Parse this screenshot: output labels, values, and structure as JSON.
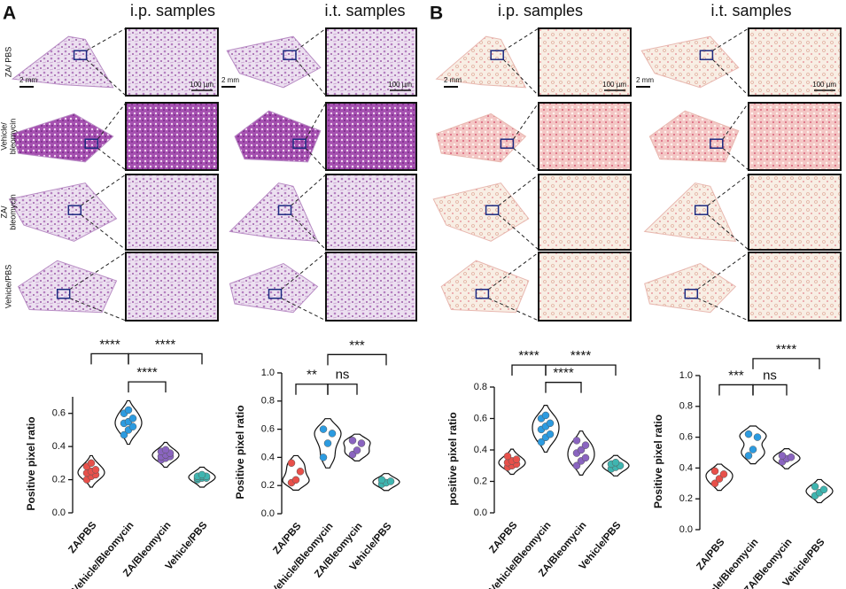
{
  "panels": [
    {
      "label": "A",
      "columns": [
        "i.p. samples",
        "i.t. samples"
      ],
      "rows": [
        [
          "ZA/ PBS"
        ],
        [
          "Vehicle/",
          "bleomycin"
        ],
        [
          "ZA/",
          "bleomycin"
        ],
        [
          "Vehicle/PBS"
        ]
      ],
      "scale_bars": [
        "2 mm",
        "100 µm"
      ]
    },
    {
      "label": "B",
      "columns": [
        "i.p. samples",
        "i.t. samples"
      ],
      "scale_bars": [
        "2 mm",
        "100 µm"
      ]
    }
  ],
  "chart_data": [
    {
      "type": "violin",
      "y_label": "Positive pixel ratio",
      "categories": [
        "ZA/PBS",
        "Vehicle/Bleomycin",
        "ZA/Bleomycin",
        "Vehicle/PBS"
      ],
      "colors": [
        "#e8504a",
        "#2c9be0",
        "#8a64c0",
        "#3fb5b0"
      ],
      "values": [
        [
          0.2,
          0.22,
          0.23,
          0.24,
          0.25,
          0.26,
          0.28,
          0.3
        ],
        [
          0.47,
          0.5,
          0.52,
          0.54,
          0.55,
          0.57,
          0.6,
          0.62
        ],
        [
          0.32,
          0.33,
          0.34,
          0.34,
          0.35,
          0.36,
          0.37,
          0.38
        ],
        [
          0.2,
          0.21,
          0.21,
          0.21,
          0.22,
          0.22,
          0.22,
          0.23
        ]
      ],
      "ylim": [
        0,
        0.7
      ],
      "yticks": [
        {
          "value": 0,
          "label": "0.0"
        },
        0.2,
        0.4,
        0.6
      ],
      "significance": [
        {
          "groups": [
            "ZA/PBS",
            "Vehicle/Bleomycin"
          ],
          "y": 0.96,
          "label": "****"
        },
        {
          "groups": [
            "Vehicle/Bleomycin",
            "Vehicle/PBS"
          ],
          "y": 0.96,
          "label": "****"
        },
        {
          "groups": [
            "Vehicle/Bleomycin",
            "ZA/Bleomycin"
          ],
          "y": 0.79,
          "label": "****"
        }
      ]
    },
    {
      "type": "violin",
      "y_label": "Positive pixel ratio",
      "categories": [
        "ZA/PBS",
        "Vehicle/Bleomycin",
        "ZA/Bleomycin",
        "Vehicle/PBS"
      ],
      "colors": [
        "#e8504a",
        "#2c9be0",
        "#8a64c0",
        "#3fb5b0"
      ],
      "values": [
        [
          0.22,
          0.24,
          0.3,
          0.36
        ],
        [
          0.4,
          0.5,
          0.57,
          0.6
        ],
        [
          0.42,
          0.45,
          0.5,
          0.52
        ],
        [
          0.21,
          0.22,
          0.23,
          0.24
        ]
      ],
      "ylim": [
        0,
        1
      ],
      "yticks": [
        {
          "value": 0,
          "label": "0.0"
        },
        0.2,
        0.4,
        0.6,
        0.8,
        {
          "value": 1,
          "label": "1.0"
        }
      ],
      "significance": [
        {
          "groups": [
            "ZA/PBS",
            "Vehicle/Bleomycin"
          ],
          "y": 0.92,
          "label": "**"
        },
        {
          "groups": [
            "Vehicle/Bleomycin",
            "ZA/Bleomycin"
          ],
          "y": 0.92,
          "label": "ns"
        },
        {
          "groups": [
            "Vehicle/Bleomycin",
            "Vehicle/PBS"
          ],
          "y": 1.13,
          "label": "***"
        }
      ]
    },
    {
      "type": "violin",
      "y_label": "positive pixel ratio",
      "categories": [
        "ZA/PBS",
        "Vehicle/Bleomycin",
        "ZA/Bleomycin",
        "Vehicle/PBS"
      ],
      "colors": [
        "#e8504a",
        "#2c9be0",
        "#8a64c0",
        "#3fb5b0"
      ],
      "values": [
        [
          0.29,
          0.3,
          0.31,
          0.32,
          0.33,
          0.34,
          0.36
        ],
        [
          0.45,
          0.48,
          0.5,
          0.53,
          0.55,
          0.57,
          0.6,
          0.62
        ],
        [
          0.3,
          0.33,
          0.35,
          0.38,
          0.4,
          0.43,
          0.46
        ],
        [
          0.28,
          0.29,
          0.3,
          0.31,
          0.32
        ]
      ],
      "ylim": [
        0,
        0.8
      ],
      "yticks": [
        {
          "value": 0,
          "label": "0.0"
        },
        0.2,
        0.4,
        0.6,
        0.8
      ],
      "significance": [
        {
          "groups": [
            "ZA/PBS",
            "Vehicle/Bleomycin"
          ],
          "y": 0.94,
          "label": "****"
        },
        {
          "groups": [
            "Vehicle/Bleomycin",
            "Vehicle/PBS"
          ],
          "y": 0.94,
          "label": "****"
        },
        {
          "groups": [
            "Vehicle/Bleomycin",
            "ZA/Bleomycin"
          ],
          "y": 0.83,
          "label": "****"
        }
      ]
    },
    {
      "type": "violin",
      "y_label": "Positive pixel ratio",
      "categories": [
        "ZA/PBS",
        "Vehicle/Bleomycin",
        "ZA/Bleomycin",
        "Vehicle/PBS"
      ],
      "colors": [
        "#e8504a",
        "#2c9be0",
        "#8a64c0",
        "#3fb5b0"
      ],
      "values": [
        [
          0.3,
          0.33,
          0.36,
          0.38
        ],
        [
          0.48,
          0.52,
          0.6,
          0.62
        ],
        [
          0.44,
          0.46,
          0.47,
          0.48
        ],
        [
          0.22,
          0.24,
          0.26,
          0.28
        ]
      ],
      "ylim": [
        0,
        1
      ],
      "yticks": [
        {
          "value": 0,
          "label": "0.0"
        },
        0.2,
        0.4,
        0.6,
        0.8,
        {
          "value": 1,
          "label": "1.0"
        }
      ],
      "significance": [
        {
          "groups": [
            "ZA/PBS",
            "Vehicle/Bleomycin"
          ],
          "y": 0.94,
          "label": "***"
        },
        {
          "groups": [
            "Vehicle/Bleomycin",
            "ZA/Bleomycin"
          ],
          "y": 0.94,
          "label": "ns"
        },
        {
          "groups": [
            "Vehicle/Bleomycin",
            "Vehicle/PBS"
          ],
          "y": 1.11,
          "label": "****"
        }
      ]
    }
  ]
}
